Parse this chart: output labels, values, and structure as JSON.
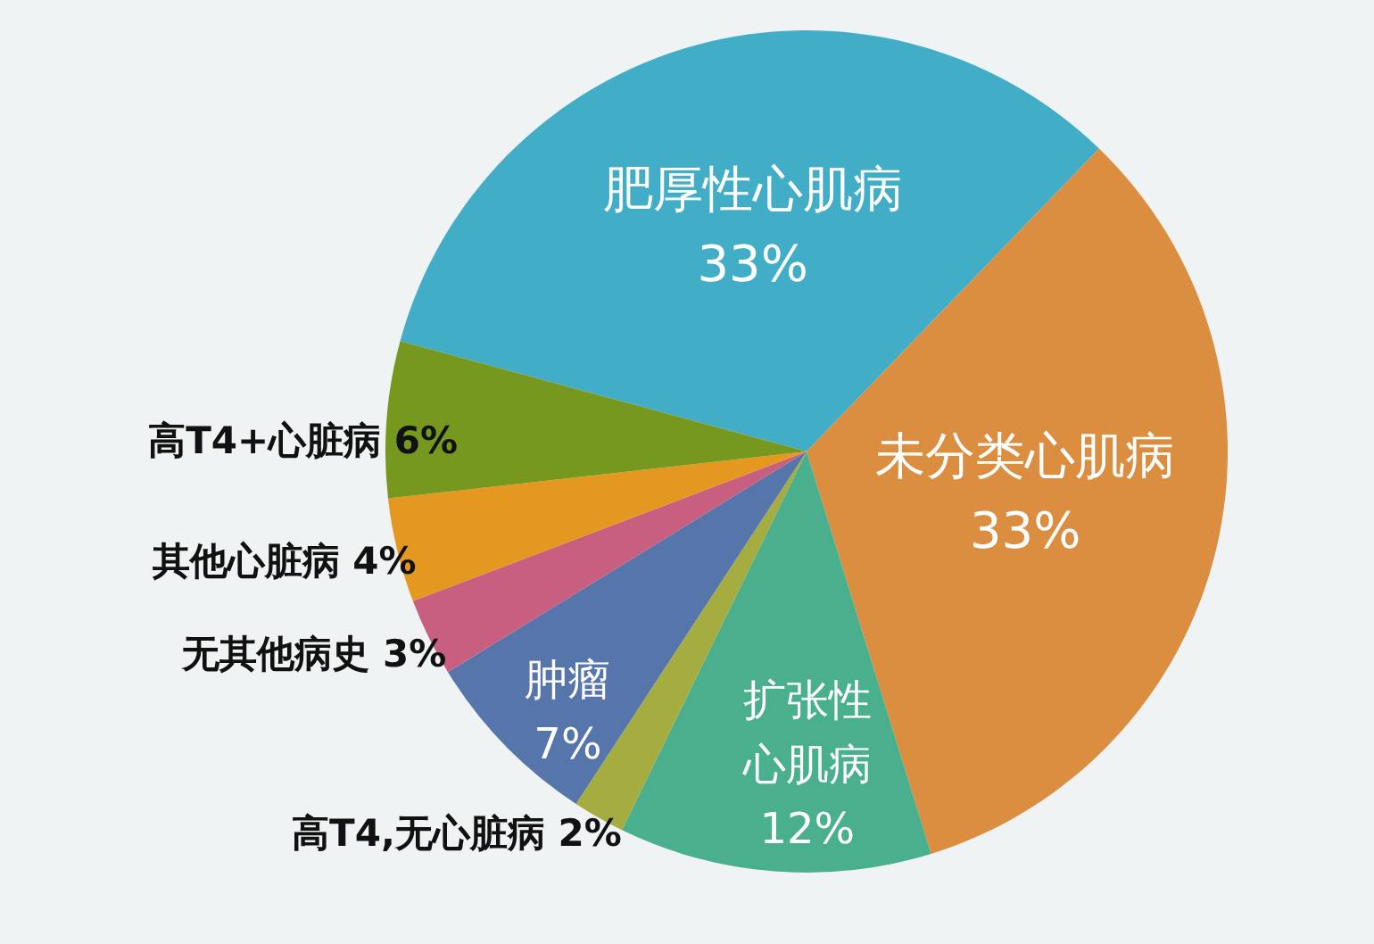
{
  "chart_data": {
    "type": "pie",
    "categories": [
      "肥厚性心肌病",
      "未分类心肌病",
      "扩张性心肌病",
      "高T4,无心脏病",
      "肿瘤",
      "无其他病史",
      "其他心脏病",
      "高T4+心脏病"
    ],
    "values": [
      33,
      33,
      12,
      2,
      7,
      3,
      4,
      6
    ],
    "value_labels": [
      "33%",
      "33%",
      "12%",
      "2%",
      "7%",
      "3%",
      "4%",
      "6%"
    ],
    "colors": [
      "#42adc7",
      "#dc8e40",
      "#4aaf8c",
      "#a5ad40",
      "#5675aa",
      "#c95f80",
      "#e59820",
      "#76981e"
    ]
  }
}
